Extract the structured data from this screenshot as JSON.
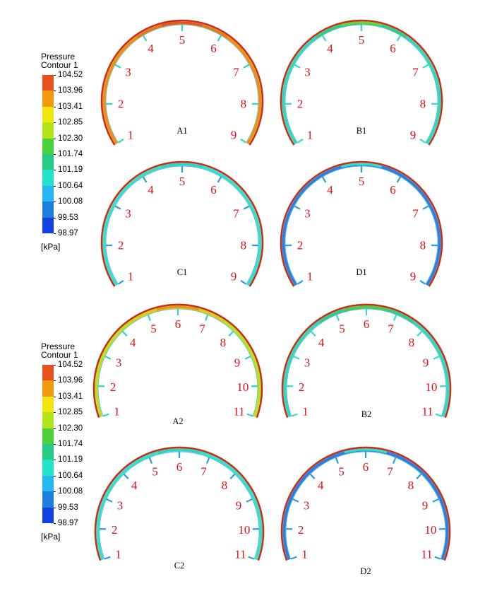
{
  "colorbars": [
    {
      "title_line1": "Pressure",
      "title_line2": "Contour 1",
      "unit": "[kPa]",
      "levels": [
        "104.52",
        "103.96",
        "103.41",
        "102.85",
        "102.30",
        "101.74",
        "101.19",
        "100.64",
        "100.08",
        "99.53",
        "98.97"
      ],
      "colors": [
        "#e8501f",
        "#f0990f",
        "#f2e60c",
        "#b5e31a",
        "#4cd13c",
        "#26cc85",
        "#22e3c9",
        "#24b7f0",
        "#1d7ee0",
        "#1240e0"
      ]
    },
    {
      "title_line1": "Pressure",
      "title_line2": "Contour 1",
      "unit": "[kPa]",
      "levels": [
        "104.52",
        "103.96",
        "103.41",
        "102.85",
        "102.30",
        "101.74",
        "101.19",
        "100.64",
        "100.08",
        "99.53",
        "98.97"
      ],
      "colors": [
        "#e8501f",
        "#f0990f",
        "#f2e60c",
        "#b5e31a",
        "#4cd13c",
        "#26cc85",
        "#22e3c9",
        "#24b7f0",
        "#1d7ee0",
        "#1240e0"
      ]
    }
  ],
  "colors": {
    "outer_ring": "#c62f14",
    "inner_ring_light": "#33e0d0",
    "marker_number": "#e0101a"
  },
  "panels": [
    {
      "label": "A1",
      "inner_color": "#f0900f",
      "top_color": "#e8501f",
      "mid_color": "#e87a18",
      "tick_color": "#2fd6c4",
      "numbers": [
        "1",
        "2",
        "3",
        "4",
        "5",
        "6",
        "7",
        "8",
        "9"
      ]
    },
    {
      "label": "B1",
      "inner_color": "#2ed9bd",
      "top_color": "#6ad530",
      "mid_color": "#30cc8a",
      "tick_color": "#33dccf",
      "numbers": [
        "1",
        "2",
        "3",
        "4",
        "5",
        "6",
        "7",
        "8",
        "9"
      ]
    },
    {
      "label": "C1",
      "inner_color": "#33e0d0",
      "top_color": "#2fd2c4",
      "mid_color": "#33e0d0",
      "tick_color": "#2a9fe0",
      "numbers": [
        "1",
        "2",
        "3",
        "4",
        "5",
        "6",
        "7",
        "8",
        "9"
      ]
    },
    {
      "label": "D1",
      "inner_color": "#2a7fe0",
      "top_color": "#33e0d0",
      "mid_color": "#2a7fe0",
      "tick_color": "#2a9fe0",
      "numbers": [
        "1",
        "2",
        "3",
        "4",
        "5",
        "6",
        "7",
        "8",
        "9"
      ]
    },
    {
      "label": "A2",
      "inner_color": "#b9e21a",
      "top_color": "#f0900f",
      "mid_color": "#d7d018",
      "tick_color": "#2fd6c4",
      "numbers": [
        "1",
        "2",
        "3",
        "4",
        "5",
        "6",
        "7",
        "8",
        "9",
        "10",
        "11"
      ]
    },
    {
      "label": "B2",
      "inner_color": "#2ed9bd",
      "top_color": "#4cd13c",
      "mid_color": "#30cc8a",
      "tick_color": "#33dccf",
      "numbers": [
        "1",
        "2",
        "3",
        "4",
        "5",
        "6",
        "7",
        "8",
        "9",
        "10",
        "11"
      ]
    },
    {
      "label": "C2",
      "inner_color": "#33e0d0",
      "top_color": "#2fd2c4",
      "mid_color": "#33e0d0",
      "tick_color": "#2a9fe0",
      "numbers": [
        "1",
        "2",
        "3",
        "4",
        "5",
        "6",
        "7",
        "8",
        "9",
        "10",
        "11"
      ]
    },
    {
      "label": "D2",
      "inner_color": "#2a7fe0",
      "top_color": "#33e0d0",
      "mid_color": "#2a7fe0",
      "tick_color": "#2a9fe0",
      "numbers": [
        "1",
        "2",
        "3",
        "4",
        "5",
        "6",
        "7",
        "8",
        "9",
        "10",
        "11"
      ]
    }
  ]
}
